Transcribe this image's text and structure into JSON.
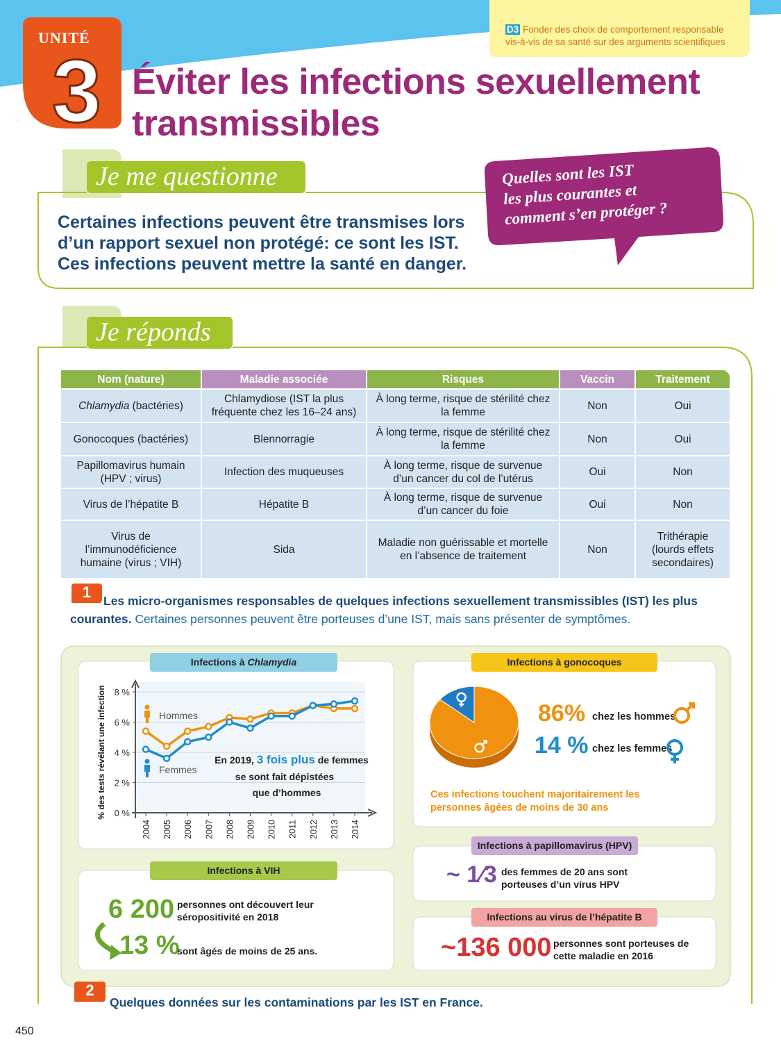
{
  "header": {
    "unit_label": "UNITÉ",
    "unit_number": "3",
    "title_line1": "Éviter les infections sexuellement",
    "title_line2": "transmissibles",
    "competence_code": "D3",
    "competence_line1": "Fonder des choix de comportement responsable",
    "competence_line2": "vis-à-vis de sa santé sur des arguments scientifiques"
  },
  "questionne": {
    "heading": "Je me questionne",
    "text_lines": [
      "Certaines infections peuvent être transmises lors",
      "d’un rapport sexuel non protégé: ce sont les IST.",
      "Ces infections peuvent mettre la santé en danger."
    ],
    "bubble_lines": [
      "Quelles sont les IST",
      "les plus courantes et",
      "comment s’en protéger ?"
    ]
  },
  "reponds": {
    "heading": "Je réponds"
  },
  "table": {
    "headers": [
      "Nom (nature)",
      "Maladie associée",
      "Risques",
      "Vaccin",
      "Traitement"
    ],
    "header_colors": [
      "#8db54a",
      "#b98fbe",
      "#8db54a",
      "#b98fbe",
      "#8db54a"
    ],
    "rows": [
      [
        [
          {
            "text": "Chlamydia",
            "italic": true
          },
          {
            "text": " (bactéries)",
            "italic": false
          }
        ],
        "Chlamydiose (IST la plus fréquente chez les 16–24 ans)",
        "À long terme, risque de stérilité chez la femme",
        "Non",
        "Oui"
      ],
      [
        "Gonocoques (bactéries)",
        "Blennorragie",
        "À long terme, risque de stérilité chez la femme",
        "Non",
        "Oui"
      ],
      [
        "Papillomavirus humain (HPV ; virus)",
        "Infection des muqueuses",
        "À long terme, risque de survenue d’un cancer du col de l’utérus",
        "Oui",
        "Non"
      ],
      [
        "Virus de l’hépatite B",
        "Hépatite B",
        "À long terme, risque de survenue d’un cancer du foie",
        "Oui",
        "Non"
      ],
      [
        "Virus de l’immunodéficience humaine (virus ; VIH)",
        "Sida",
        "Maladie non guérissable et mortelle en l’absence de traitement",
        "Non",
        "Trithérapie (lourds effets secondaires)"
      ]
    ]
  },
  "doc1": {
    "number": "1",
    "title": "Les micro-organismes responsables de quelques infections sexuellement transmissibles (IST) les plus courantes.",
    "text": " Certaines personnes peuvent être porteuses d’une IST, mais sans présenter de symptômes."
  },
  "chart_data": [
    {
      "type": "line",
      "title_parts": [
        "Infections à ",
        "Chlamydia"
      ],
      "y_label": "% des tests révélant une infection",
      "categories": [
        "2004",
        "2005",
        "2006",
        "2007",
        "2008",
        "2009",
        "2010",
        "2011",
        "2012",
        "2013",
        "2014"
      ],
      "series": [
        {
          "name": "Hommes",
          "color": "#f0920f",
          "values": [
            5.4,
            4.4,
            5.4,
            5.7,
            6.3,
            6.2,
            6.6,
            6.6,
            7.1,
            6.9,
            6.9
          ]
        },
        {
          "name": "Femmes",
          "color": "#1f8ccc",
          "values": [
            4.2,
            3.6,
            4.7,
            5.0,
            6.0,
            5.6,
            6.4,
            6.4,
            7.1,
            7.2,
            7.4
          ]
        }
      ],
      "ylim": [
        0,
        8
      ],
      "yticks": [
        {
          "value": 0,
          "label": "0 %"
        },
        {
          "value": 2,
          "label": "2 %"
        },
        {
          "value": 4,
          "label": "4 %"
        },
        {
          "value": 6,
          "label": "6 %"
        },
        {
          "value": 8,
          "label": "8 %"
        }
      ],
      "grid": true,
      "annotation_parts": [
        "En 2019, ",
        "3 fois plus",
        " de femmes",
        "se sont fait dépistées",
        "que d’hommes"
      ]
    },
    {
      "type": "pie",
      "title": "Infections à gonocoques",
      "categories": [
        "chez les hommes",
        "chez les femmes"
      ],
      "values": [
        86,
        14
      ],
      "value_labels": [
        "86%",
        "14 %"
      ],
      "colors": [
        "#f0920f",
        "#1f7cc4"
      ],
      "note": "Ces infections touchent majoritairement les personnes âgées de moins de 30 ans"
    }
  ],
  "vih": {
    "title": "Infections à VIH",
    "stat1": "6 200",
    "text1": "personnes ont découvert leur séropositivité en 2018",
    "stat2": "13 %",
    "text2": "sont âgés de moins de 25 ans."
  },
  "hpv": {
    "title": "Infections à papillomavirus (HPV)",
    "stat": "~ 1⁄3",
    "text": "des femmes de 20 ans sont porteuses d’un virus HPV"
  },
  "hepatite": {
    "title": "Infections au virus de l’hépatite B",
    "stat": "~136 000",
    "text": "personnes sont porteuses de cette maladie en 2016"
  },
  "doc2": {
    "number": "2",
    "title": "Quelques données sur les contaminations par les IST en France."
  },
  "page_number": "450"
}
